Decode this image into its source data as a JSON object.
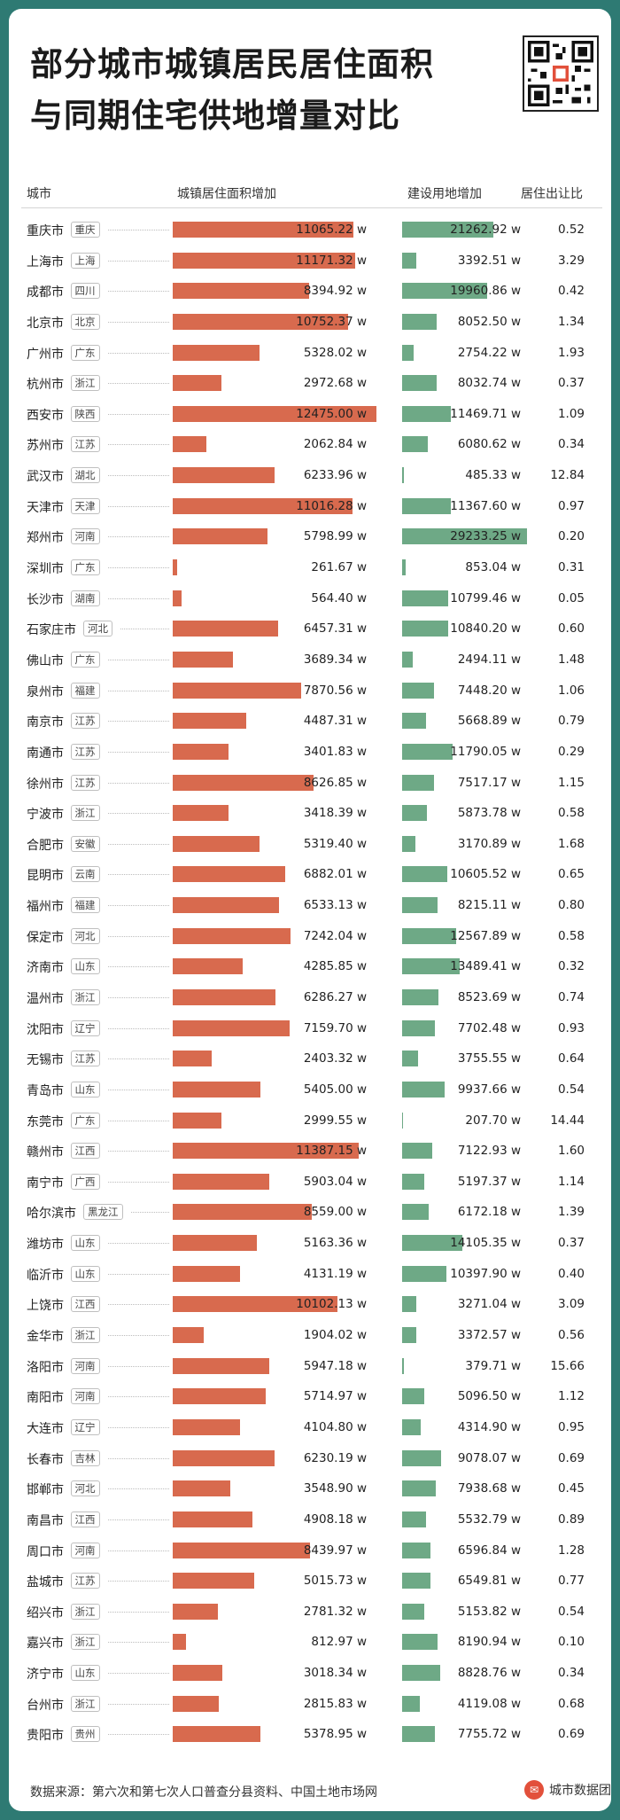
{
  "title_line1": "部分城市城镇居民居住面积",
  "title_line2": "与同期住宅供地增量对比",
  "headers": {
    "city": "城市",
    "residential": "城镇居住面积增加",
    "land": "建设用地增加",
    "ratio": "居住出让比"
  },
  "unit": "w",
  "source_text": "数据来源：第六次和第七次人口普查分县资料、中国土地市场网",
  "brand_text": "城市数据团",
  "colors": {
    "residential_bar": "#d86a4e",
    "land_bar": "#6ea986",
    "frame": "#2e7a73"
  },
  "chart_data": {
    "type": "bar",
    "xlabel": "",
    "ylabel": "",
    "series": [
      {
        "name": "城镇居住面积增加",
        "unit": "w",
        "xlim": [
          0,
          12500
        ]
      },
      {
        "name": "建设用地增加",
        "unit": "w",
        "xlim": [
          0,
          30000
        ]
      }
    ],
    "rows": [
      {
        "city": "重庆市",
        "province": "重庆",
        "residential": "11065.22",
        "land": "21262.92",
        "ratio": "0.52"
      },
      {
        "city": "上海市",
        "province": "上海",
        "residential": "11171.32",
        "land": "3392.51",
        "ratio": "3.29"
      },
      {
        "city": "成都市",
        "province": "四川",
        "residential": "8394.92",
        "land": "19960.86",
        "ratio": "0.42"
      },
      {
        "city": "北京市",
        "province": "北京",
        "residential": "10752.37",
        "land": "8052.50",
        "ratio": "1.34"
      },
      {
        "city": "广州市",
        "province": "广东",
        "residential": "5328.02",
        "land": "2754.22",
        "ratio": "1.93"
      },
      {
        "city": "杭州市",
        "province": "浙江",
        "residential": "2972.68",
        "land": "8032.74",
        "ratio": "0.37"
      },
      {
        "city": "西安市",
        "province": "陕西",
        "residential": "12475.00",
        "land": "11469.71",
        "ratio": "1.09"
      },
      {
        "city": "苏州市",
        "province": "江苏",
        "residential": "2062.84",
        "land": "6080.62",
        "ratio": "0.34"
      },
      {
        "city": "武汉市",
        "province": "湖北",
        "residential": "6233.96",
        "land": "485.33",
        "ratio": "12.84"
      },
      {
        "city": "天津市",
        "province": "天津",
        "residential": "11016.28",
        "land": "11367.60",
        "ratio": "0.97"
      },
      {
        "city": "郑州市",
        "province": "河南",
        "residential": "5798.99",
        "land": "29233.25",
        "ratio": "0.20"
      },
      {
        "city": "深圳市",
        "province": "广东",
        "residential": "261.67",
        "land": "853.04",
        "ratio": "0.31"
      },
      {
        "city": "长沙市",
        "province": "湖南",
        "residential": "564.40",
        "land": "10799.46",
        "ratio": "0.05"
      },
      {
        "city": "石家庄市",
        "province": "河北",
        "residential": "6457.31",
        "land": "10840.20",
        "ratio": "0.60"
      },
      {
        "city": "佛山市",
        "province": "广东",
        "residential": "3689.34",
        "land": "2494.11",
        "ratio": "1.48"
      },
      {
        "city": "泉州市",
        "province": "福建",
        "residential": "7870.56",
        "land": "7448.20",
        "ratio": "1.06"
      },
      {
        "city": "南京市",
        "province": "江苏",
        "residential": "4487.31",
        "land": "5668.89",
        "ratio": "0.79"
      },
      {
        "city": "南通市",
        "province": "江苏",
        "residential": "3401.83",
        "land": "11790.05",
        "ratio": "0.29"
      },
      {
        "city": "徐州市",
        "province": "江苏",
        "residential": "8626.85",
        "land": "7517.17",
        "ratio": "1.15"
      },
      {
        "city": "宁波市",
        "province": "浙江",
        "residential": "3418.39",
        "land": "5873.78",
        "ratio": "0.58"
      },
      {
        "city": "合肥市",
        "province": "安徽",
        "residential": "5319.40",
        "land": "3170.89",
        "ratio": "1.68"
      },
      {
        "city": "昆明市",
        "province": "云南",
        "residential": "6882.01",
        "land": "10605.52",
        "ratio": "0.65"
      },
      {
        "city": "福州市",
        "province": "福建",
        "residential": "6533.13",
        "land": "8215.11",
        "ratio": "0.80"
      },
      {
        "city": "保定市",
        "province": "河北",
        "residential": "7242.04",
        "land": "12567.89",
        "ratio": "0.58"
      },
      {
        "city": "济南市",
        "province": "山东",
        "residential": "4285.85",
        "land": "13489.41",
        "ratio": "0.32"
      },
      {
        "city": "温州市",
        "province": "浙江",
        "residential": "6286.27",
        "land": "8523.69",
        "ratio": "0.74"
      },
      {
        "city": "沈阳市",
        "province": "辽宁",
        "residential": "7159.70",
        "land": "7702.48",
        "ratio": "0.93"
      },
      {
        "city": "无锡市",
        "province": "江苏",
        "residential": "2403.32",
        "land": "3755.55",
        "ratio": "0.64"
      },
      {
        "city": "青岛市",
        "province": "山东",
        "residential": "5405.00",
        "land": "9937.66",
        "ratio": "0.54"
      },
      {
        "city": "东莞市",
        "province": "广东",
        "residential": "2999.55",
        "land": "207.70",
        "ratio": "14.44"
      },
      {
        "city": "赣州市",
        "province": "江西",
        "residential": "11387.15",
        "land": "7122.93",
        "ratio": "1.60"
      },
      {
        "city": "南宁市",
        "province": "广西",
        "residential": "5903.04",
        "land": "5197.37",
        "ratio": "1.14"
      },
      {
        "city": "哈尔滨市",
        "province": "黑龙江",
        "residential": "8559.00",
        "land": "6172.18",
        "ratio": "1.39"
      },
      {
        "city": "潍坊市",
        "province": "山东",
        "residential": "5163.36",
        "land": "14105.35",
        "ratio": "0.37"
      },
      {
        "city": "临沂市",
        "province": "山东",
        "residential": "4131.19",
        "land": "10397.90",
        "ratio": "0.40"
      },
      {
        "city": "上饶市",
        "province": "江西",
        "residential": "10102.13",
        "land": "3271.04",
        "ratio": "3.09"
      },
      {
        "city": "金华市",
        "province": "浙江",
        "residential": "1904.02",
        "land": "3372.57",
        "ratio": "0.56"
      },
      {
        "city": "洛阳市",
        "province": "河南",
        "residential": "5947.18",
        "land": "379.71",
        "ratio": "15.66"
      },
      {
        "city": "南阳市",
        "province": "河南",
        "residential": "5714.97",
        "land": "5096.50",
        "ratio": "1.12"
      },
      {
        "city": "大连市",
        "province": "辽宁",
        "residential": "4104.80",
        "land": "4314.90",
        "ratio": "0.95"
      },
      {
        "city": "长春市",
        "province": "吉林",
        "residential": "6230.19",
        "land": "9078.07",
        "ratio": "0.69"
      },
      {
        "city": "邯郸市",
        "province": "河北",
        "residential": "3548.90",
        "land": "7938.68",
        "ratio": "0.45"
      },
      {
        "city": "南昌市",
        "province": "江西",
        "residential": "4908.18",
        "land": "5532.79",
        "ratio": "0.89"
      },
      {
        "city": "周口市",
        "province": "河南",
        "residential": "8439.97",
        "land": "6596.84",
        "ratio": "1.28"
      },
      {
        "city": "盐城市",
        "province": "江苏",
        "residential": "5015.73",
        "land": "6549.81",
        "ratio": "0.77"
      },
      {
        "city": "绍兴市",
        "province": "浙江",
        "residential": "2781.32",
        "land": "5153.82",
        "ratio": "0.54"
      },
      {
        "city": "嘉兴市",
        "province": "浙江",
        "residential": "812.97",
        "land": "8190.94",
        "ratio": "0.10"
      },
      {
        "city": "济宁市",
        "province": "山东",
        "residential": "3018.34",
        "land": "8828.76",
        "ratio": "0.34"
      },
      {
        "city": "台州市",
        "province": "浙江",
        "residential": "2815.83",
        "land": "4119.08",
        "ratio": "0.68"
      },
      {
        "city": "贵阳市",
        "province": "贵州",
        "residential": "5378.95",
        "land": "7755.72",
        "ratio": "0.69"
      }
    ]
  }
}
